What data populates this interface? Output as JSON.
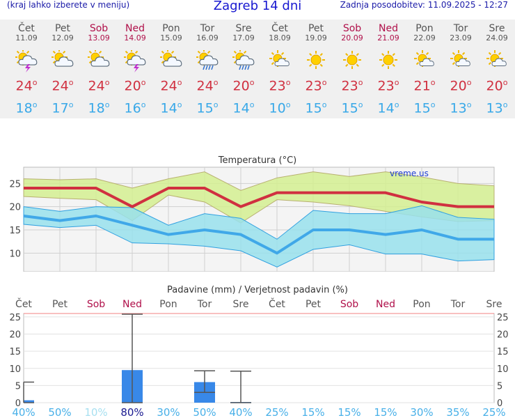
{
  "header": {
    "hint": "(kraj lahko izberete v meniju)",
    "title": "Zagreb 14 dni",
    "updated": "Zadnja posodobitev: 11.09.2025 - 12:27"
  },
  "days": [
    {
      "name": "Čet",
      "date": "11.09",
      "weekend": false,
      "icon": "sun-cloud-storm-icon",
      "tmax": "24",
      "tmin": "18"
    },
    {
      "name": "Pet",
      "date": "12.09",
      "weekend": false,
      "icon": "sun-cloud-icon",
      "tmax": "24",
      "tmin": "17"
    },
    {
      "name": "Sob",
      "date": "13.09",
      "weekend": true,
      "icon": "sun-cloud-icon",
      "tmax": "24",
      "tmin": "18"
    },
    {
      "name": "Ned",
      "date": "14.09",
      "weekend": true,
      "icon": "sun-cloud-storm-icon",
      "tmax": "20",
      "tmin": "16"
    },
    {
      "name": "Pon",
      "date": "15.09",
      "weekend": false,
      "icon": "sun-cloud-icon",
      "tmax": "24",
      "tmin": "14"
    },
    {
      "name": "Tor",
      "date": "16.09",
      "weekend": false,
      "icon": "sun-cloud-rain-icon",
      "tmax": "24",
      "tmin": "15"
    },
    {
      "name": "Sre",
      "date": "17.09",
      "weekend": false,
      "icon": "sun-cloud-rain-icon",
      "tmax": "20",
      "tmin": "14"
    },
    {
      "name": "Čet",
      "date": "18.09",
      "weekend": false,
      "icon": "sun-small-cloud-icon",
      "tmax": "23",
      "tmin": "10"
    },
    {
      "name": "Pet",
      "date": "19.09",
      "weekend": false,
      "icon": "sun-icon",
      "tmax": "23",
      "tmin": "15"
    },
    {
      "name": "Sob",
      "date": "20.09",
      "weekend": true,
      "icon": "sun-icon",
      "tmax": "23",
      "tmin": "15"
    },
    {
      "name": "Ned",
      "date": "21.09",
      "weekend": true,
      "icon": "sun-icon",
      "tmax": "23",
      "tmin": "14"
    },
    {
      "name": "Pon",
      "date": "22.09",
      "weekend": false,
      "icon": "sun-small-cloud-icon",
      "tmax": "21",
      "tmin": "15"
    },
    {
      "name": "Tor",
      "date": "23.09",
      "weekend": false,
      "icon": "sun-small-cloud-icon",
      "tmax": "20",
      "tmin": "13"
    },
    {
      "name": "Sre",
      "date": "24.09",
      "weekend": false,
      "icon": "sun-small-cloud-icon",
      "tmax": "20",
      "tmin": "13"
    }
  ],
  "colors": {
    "weekend": "#b0104a",
    "tmax_line": "#d03040",
    "tmin_line": "#40a8e8",
    "max_band": "#d4ee90",
    "min_band": "#98e0ec",
    "precip_bar": "#3888e8",
    "prob_dark": "#1a1a90",
    "prob_light": "#48b0e8",
    "prob_pale": "#a8e0f0"
  },
  "chart_data": [
    {
      "type": "line",
      "title": "Temperatura",
      "unit": "°C",
      "watermark": "vreme.us",
      "categories": [
        "11.09",
        "12.09",
        "13.09",
        "14.09",
        "15.09",
        "16.09",
        "17.09",
        "18.09",
        "19.09",
        "20.09",
        "21.09",
        "22.09",
        "23.09",
        "24.09"
      ],
      "ylim": [
        6,
        28.5
      ],
      "yticks": [
        10,
        15,
        20,
        25
      ],
      "grid": true,
      "series": [
        {
          "values": [
            24,
            24,
            24,
            20,
            24,
            24,
            20,
            23,
            23,
            23,
            23,
            21,
            20,
            20
          ]
        },
        {
          "values": [
            18,
            17,
            18,
            16,
            14,
            15,
            14,
            10,
            15,
            15,
            14,
            15,
            13,
            13
          ]
        }
      ],
      "bands": [
        {
          "series": 0,
          "upper": [
            26,
            25.8,
            26,
            24,
            26,
            27.5,
            23.5,
            26.2,
            27.5,
            26.5,
            27.5,
            26.4,
            25,
            24.5
          ],
          "lower": [
            22.2,
            21.8,
            21.5,
            17,
            22.5,
            21,
            16.5,
            21.5,
            21,
            20.2,
            19,
            17.8,
            16.8,
            17
          ]
        },
        {
          "series": 1,
          "upper": [
            20,
            19,
            20,
            19.8,
            16,
            18.5,
            17.5,
            13,
            19.2,
            18.5,
            18.5,
            20.2,
            17.7,
            17.3
          ],
          "lower": [
            16.2,
            15.5,
            16,
            12.2,
            12,
            11.5,
            10.5,
            7,
            10.8,
            11.8,
            9.8,
            9.8,
            8.3,
            8.6
          ]
        }
      ]
    },
    {
      "type": "bar",
      "title": "Padavine (mm) / Verjetnost padavin (%)",
      "categories": [
        "Čet",
        "Pet",
        "Sob",
        "Ned",
        "Pon",
        "Tor",
        "Sre",
        "Čet",
        "Pet",
        "Sob",
        "Ned",
        "Pon",
        "Tor",
        "Sre"
      ],
      "weekend": [
        false,
        false,
        true,
        true,
        false,
        false,
        false,
        false,
        false,
        true,
        true,
        false,
        false,
        false
      ],
      "ylim": [
        0,
        26
      ],
      "yticks": [
        0,
        5,
        10,
        15,
        20,
        25
      ],
      "values": [
        0.7,
        0,
        0,
        9.5,
        0,
        6,
        0.2,
        0,
        0,
        0,
        0,
        0,
        0,
        0
      ],
      "error_bars": [
        [
          0,
          6
        ],
        null,
        null,
        [
          0,
          25.8
        ],
        null,
        [
          3,
          9.3
        ],
        [
          0,
          9.2
        ],
        null,
        null,
        null,
        null,
        null,
        null,
        null
      ],
      "probability": [
        "40%",
        "50%",
        "10%",
        "80%",
        "30%",
        "50%",
        "40%",
        "25%",
        "15%",
        "15%",
        "15%",
        "30%",
        "35%",
        "25%"
      ]
    }
  ]
}
